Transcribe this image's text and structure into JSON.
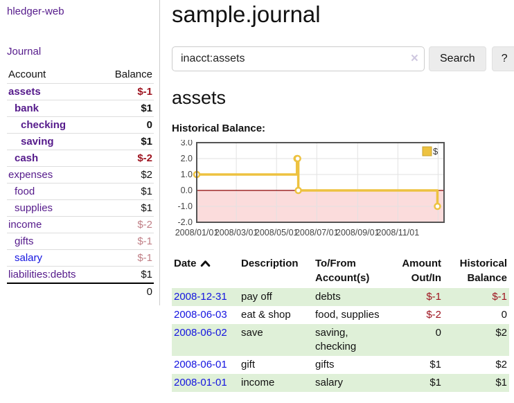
{
  "app": {
    "brand": "hledger-web",
    "journal_link": "Journal"
  },
  "colors": {
    "link_purple": "#551a8b",
    "link_blue": "#1414e0",
    "negative_strong": "#9e1420",
    "negative_muted": "#c07f86",
    "row_green": "#dff0d8"
  },
  "sidebar": {
    "headers": {
      "account": "Account",
      "balance": "Balance"
    },
    "rows": [
      {
        "account": "assets",
        "indent": 1,
        "bold": true,
        "balance": "$-1",
        "balance_style": "neg-strong"
      },
      {
        "account": "bank",
        "indent": 2,
        "bold": true,
        "balance": "$1",
        "balance_style": "pos-strong"
      },
      {
        "account": "checking",
        "indent": 3,
        "bold": true,
        "balance": "0",
        "balance_style": "pos-strong"
      },
      {
        "account": "saving",
        "indent": 3,
        "bold": true,
        "balance": "$1",
        "balance_style": "pos-strong"
      },
      {
        "account": "cash",
        "indent": 2,
        "bold": true,
        "balance": "$-2",
        "balance_style": "neg-strong"
      },
      {
        "account": "expenses",
        "indent": 1,
        "bold": false,
        "balance": "$2",
        "balance_style": "pos"
      },
      {
        "account": "food",
        "indent": 2,
        "bold": false,
        "balance": "$1",
        "balance_style": "pos"
      },
      {
        "account": "supplies",
        "indent": 2,
        "bold": false,
        "balance": "$1",
        "balance_style": "pos"
      },
      {
        "account": "income",
        "indent": 1,
        "bold": false,
        "balance": "$-2",
        "balance_style": "neg-muted"
      },
      {
        "account": "gifts",
        "indent": 2,
        "bold": false,
        "balance": "$-1",
        "balance_style": "neg-muted"
      },
      {
        "account": "salary",
        "indent": 2,
        "bold": false,
        "link_color": "blue",
        "balance": "$-1",
        "balance_style": "neg-muted"
      },
      {
        "account": "liabilities:debts",
        "indent": 1,
        "bold": false,
        "balance": "$1",
        "balance_style": "pos"
      }
    ],
    "total": "0"
  },
  "header": {
    "title": "sample.journal"
  },
  "search": {
    "value": "inacct:assets",
    "placeholder": "",
    "clear_icon": "×",
    "button_label": "Search",
    "help_label": "?"
  },
  "register": {
    "heading": "assets",
    "chart_label": "Historical Balance:",
    "table": {
      "headers": [
        {
          "lines": [
            "Date"
          ],
          "align": "left",
          "sortable": true,
          "sort_dir": "asc"
        },
        {
          "lines": [
            "Description"
          ],
          "align": "left"
        },
        {
          "lines": [
            "To/From",
            "Account(s)"
          ],
          "align": "left"
        },
        {
          "lines": [
            "Amount",
            "Out/In"
          ],
          "align": "right"
        },
        {
          "lines": [
            "Historical",
            "Balance"
          ],
          "align": "right"
        }
      ],
      "rows": [
        {
          "date": "2008-12-31",
          "description": "pay off",
          "accounts": [
            "debts"
          ],
          "amount": "$-1",
          "amount_negative": true,
          "balance": "$-1",
          "balance_negative": true,
          "shaded": true
        },
        {
          "date": "2008-06-03",
          "description": "eat & shop",
          "accounts": [
            "food, supplies"
          ],
          "amount": "$-2",
          "amount_negative": true,
          "balance": "0",
          "balance_negative": false,
          "shaded": false
        },
        {
          "date": "2008-06-02",
          "description": "save",
          "accounts": [
            "saving,",
            "checking"
          ],
          "amount": "0",
          "amount_negative": false,
          "balance": "$2",
          "balance_negative": false,
          "shaded": true
        },
        {
          "date": "2008-06-01",
          "description": "gift",
          "accounts": [
            "gifts"
          ],
          "amount": "$1",
          "amount_negative": false,
          "balance": "$2",
          "balance_negative": false,
          "shaded": false
        },
        {
          "date": "2008-01-01",
          "description": "income",
          "accounts": [
            "salary"
          ],
          "amount": "$1",
          "amount_negative": false,
          "balance": "$1",
          "balance_negative": false,
          "shaded": true
        }
      ]
    }
  },
  "chart_data": {
    "type": "line",
    "title": "Historical Balance",
    "steps": true,
    "series": [
      {
        "name": "$",
        "color": "#edc240",
        "points": [
          {
            "date": "2008-01-01",
            "day": 0,
            "y": 1
          },
          {
            "date": "2008-06-01",
            "day": 152,
            "y": 2
          },
          {
            "date": "2008-06-02",
            "day": 153,
            "y": 2
          },
          {
            "date": "2008-06-03",
            "day": 154,
            "y": 0
          },
          {
            "date": "2008-12-31",
            "day": 365,
            "y": -1
          }
        ]
      }
    ],
    "xlim_days": [
      0,
      375
    ],
    "ylim": [
      -2,
      3
    ],
    "y_ticks": [
      {
        "v": 3,
        "label": "3.0"
      },
      {
        "v": 2,
        "label": "2.0"
      },
      {
        "v": 1,
        "label": "1.0"
      },
      {
        "v": 0,
        "label": "0.0"
      },
      {
        "v": -1,
        "label": "-1.0"
      },
      {
        "v": -2,
        "label": "-2.0"
      }
    ],
    "x_ticks": [
      {
        "day": 0,
        "label": "2008/01/01"
      },
      {
        "day": 60,
        "label": "2008/03/01"
      },
      {
        "day": 121,
        "label": "2008/05/01"
      },
      {
        "day": 182,
        "label": "2008/07/01"
      },
      {
        "day": 244,
        "label": "2008/09/01"
      },
      {
        "day": 305,
        "label": "2008/11/01"
      },
      {
        "day": 366,
        "label": ""
      }
    ],
    "legend": {
      "label": "$",
      "position": "top-right"
    },
    "grid": true,
    "style": {
      "border_color": "#545454",
      "gridline_color": "#e2e2e2",
      "negative_region_color": "#fbdcdc",
      "zero_line_color": "#8b0000",
      "marker_fill": "#ffffff"
    }
  }
}
